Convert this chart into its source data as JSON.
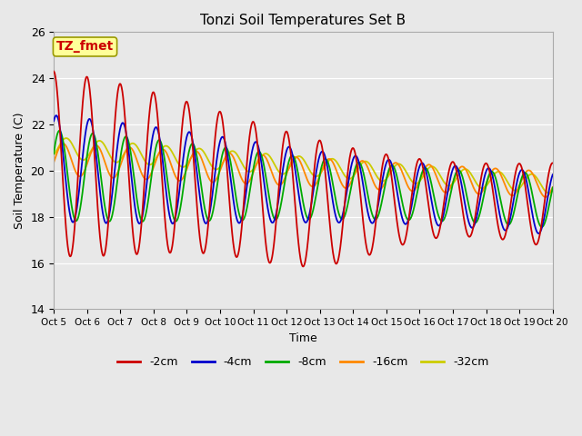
{
  "title": "Tonzi Soil Temperatures Set B",
  "xlabel": "Time",
  "ylabel": "Soil Temperature (C)",
  "ylim": [
    14,
    26
  ],
  "xlim": [
    0,
    15
  ],
  "x_tick_labels": [
    "Oct 5",
    "Oct 6",
    "Oct 7",
    "Oct 8",
    "Oct 9",
    "Oct 10",
    "Oct 11",
    "Oct 12",
    "Oct 13",
    "Oct 14",
    "Oct 15",
    "Oct 16",
    "Oct 17",
    "Oct 18",
    "Oct 19",
    "Oct 20"
  ],
  "background_color": "#e8e8e8",
  "plot_bg_color": "#e8e8e8",
  "annotation_text": "TZ_fmet",
  "annotation_color": "#cc0000",
  "annotation_bg": "#ffff99",
  "annotation_border": "#999900",
  "series": {
    "-2cm": {
      "color": "#cc0000",
      "lw": 1.3
    },
    "-4cm": {
      "color": "#0000cc",
      "lw": 1.3
    },
    "-8cm": {
      "color": "#00aa00",
      "lw": 1.3
    },
    "-16cm": {
      "color": "#ff8800",
      "lw": 1.3
    },
    "-32cm": {
      "color": "#cccc00",
      "lw": 1.3
    }
  },
  "figsize": [
    6.4,
    4.8
  ],
  "dpi": 100
}
